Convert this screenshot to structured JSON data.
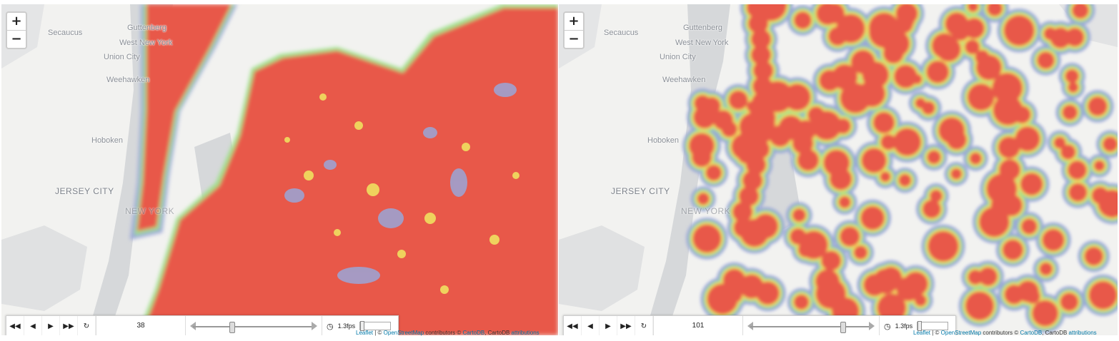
{
  "map_labels": {
    "secaucus": "Secaucus",
    "guttenberg": "Guttenberg",
    "west_new_york": "West New York",
    "union_city": "Union City",
    "weehawken": "Weehawken",
    "hoboken": "Hoboken",
    "jersey_city": "JERSEY CITY",
    "new_york": "NEW YORK"
  },
  "zoom": {
    "in_label": "+",
    "out_label": "−"
  },
  "panels": [
    {
      "frame": "38",
      "frame_progress": 0.3,
      "fps": "1.3fps"
    },
    {
      "frame": "101",
      "frame_progress": 0.78,
      "fps": "1.3fps"
    }
  ],
  "attribution": {
    "leaflet": "Leaflet",
    "sep": " | © ",
    "osm": "OpenStreetMap",
    "contributors": " contributors © ",
    "carto": "CartoDB",
    "carto_text": ", CartoDB ",
    "attributions": "attributions"
  },
  "colors": {
    "heat_core": "#e8594a",
    "heat_mid": "#f0e060",
    "heat_low": "#9ee08a",
    "heat_edge": "#9aa6d8",
    "water": "#d6d8da",
    "land": "#f2f2f0"
  }
}
